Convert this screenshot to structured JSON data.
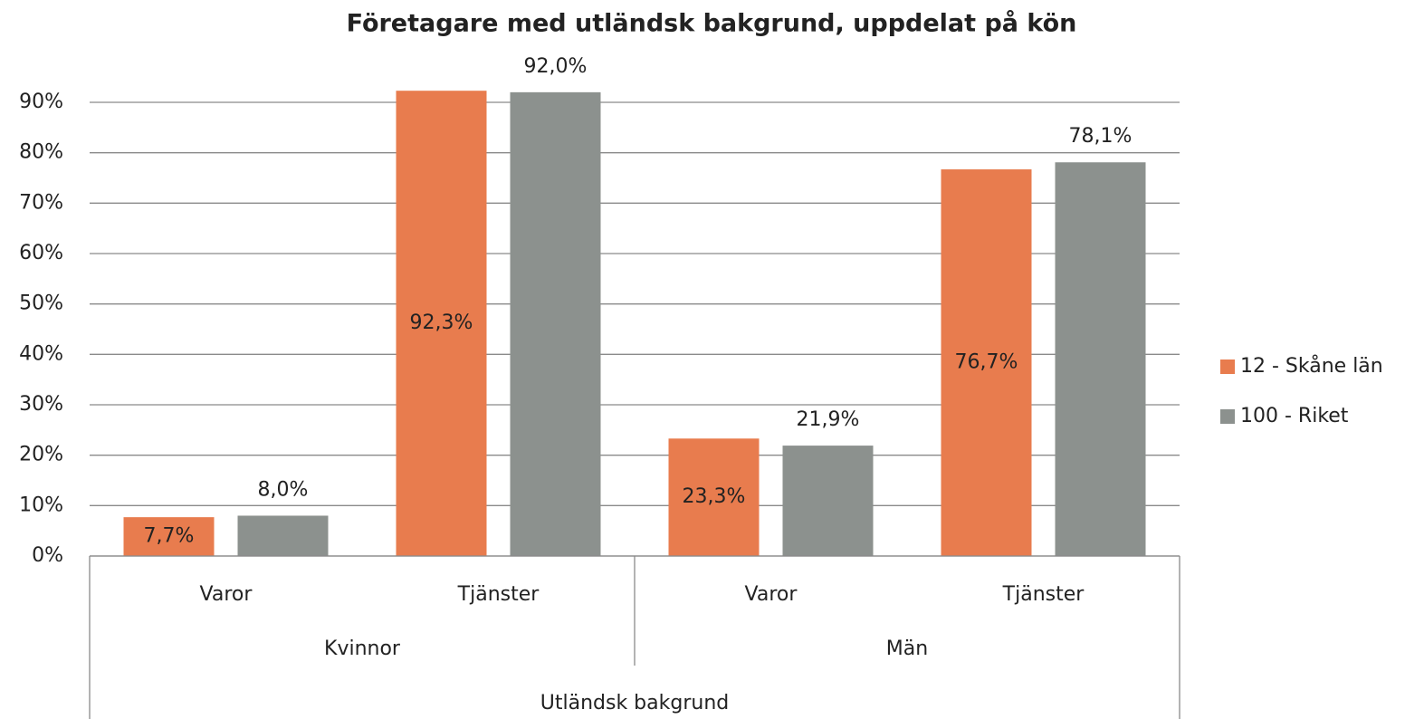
{
  "chart_data": {
    "type": "bar",
    "title": "Företagare med utländsk bakgrund, uppdelat på kön",
    "categories": [
      "Varor",
      "Tjänster",
      "Varor",
      "Tjänster"
    ],
    "category_groups": [
      "Kvinnor",
      "Män"
    ],
    "category_supergroup": "Utländsk bakgrund",
    "series": [
      {
        "name": "12 - Skåne län",
        "color": "#e87c4e",
        "values": [
          7.7,
          92.3,
          23.3,
          76.7
        ],
        "value_labels": [
          "7,7%",
          "92,3%",
          "23,3%",
          "76,7%"
        ]
      },
      {
        "name": "100 - Riket",
        "color": "#8c918e",
        "values": [
          8.0,
          92.0,
          21.9,
          78.1
        ],
        "value_labels": [
          "8,0%",
          "92,0%",
          "21,9%",
          "78,1%"
        ]
      }
    ],
    "ylim": [
      0,
      90
    ],
    "yticks": [
      {
        "value": 0,
        "label": "0%"
      },
      {
        "value": 10,
        "label": "10%"
      },
      {
        "value": 20,
        "label": "20%"
      },
      {
        "value": 30,
        "label": "30%"
      },
      {
        "value": 40,
        "label": "40%"
      },
      {
        "value": 50,
        "label": "50%"
      },
      {
        "value": 60,
        "label": "60%"
      },
      {
        "value": 70,
        "label": "70%"
      },
      {
        "value": 80,
        "label": "80%"
      },
      {
        "value": 90,
        "label": "90%"
      }
    ],
    "grid": true,
    "legend": "right"
  }
}
